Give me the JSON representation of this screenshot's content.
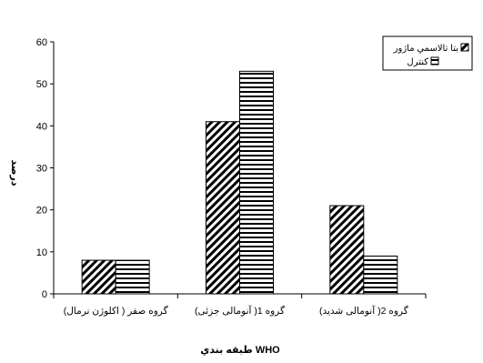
{
  "chart_data": {
    "type": "bar",
    "title": "",
    "xlabel": "طبقه بندي WHO",
    "ylabel": "درصد",
    "ylim": [
      0,
      60
    ],
    "yticks": [
      0,
      10,
      20,
      30,
      40,
      50,
      60
    ],
    "grid": false,
    "legend_position": "top-right",
    "categories": [
      "گروه صفر ( اكلوژن نرمال)",
      "گروه 1( آنومالی جزئی)",
      "گروه 2( آنومالی شدید)"
    ],
    "series": [
      {
        "name": "بتا تالاسمي ماژور",
        "values": [
          8,
          41,
          21
        ],
        "pattern": "diagonal-hatch"
      },
      {
        "name": "كنترل",
        "values": [
          8,
          53,
          9
        ],
        "pattern": "horizontal-lines"
      }
    ],
    "colors": {
      "bar_stroke": "#000000",
      "pattern_ink": "#000000",
      "background": "#ffffff"
    }
  }
}
